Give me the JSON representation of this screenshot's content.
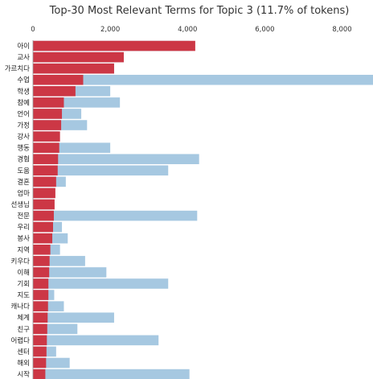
{
  "chart_data": {
    "type": "bar",
    "orientation": "horizontal",
    "title": "Top-30 Most Relevant Terms for Topic 3 (11.7% of tokens)",
    "xlabel": "",
    "ylabel": "",
    "xlim": [
      0,
      8800
    ],
    "x_ticks": [
      0,
      2000,
      4000,
      6000,
      8000
    ],
    "x_tick_labels": [
      "0",
      "2,000",
      "4,000",
      "6,000",
      "8,000"
    ],
    "x_axis_position": "top",
    "grid": false,
    "categories": [
      "아이",
      "교사",
      "가르치다",
      "수업",
      "학생",
      "참예",
      "언어",
      "가정",
      "강사",
      "행동",
      "경험",
      "도움",
      "결혼",
      "엄마",
      "선생님",
      "전문",
      "우리",
      "봉사",
      "지역",
      "키우다",
      "이해",
      "기회",
      "지도",
      "캐나다",
      "체계",
      "친구",
      "어렵다",
      "센터",
      "해외",
      "시작"
    ],
    "series": [
      {
        "role": "overall",
        "values": [
          4050,
          2350,
          2100,
          8800,
          2000,
          2250,
          1250,
          1400,
          650,
          2000,
          4300,
          3500,
          850,
          550,
          500,
          4250,
          750,
          900,
          700,
          1350,
          1900,
          3500,
          550,
          800,
          2100,
          1150,
          3250,
          600,
          950,
          4050
        ],
        "color": "#a6c8e1"
      },
      {
        "role": "topic",
        "values": [
          4200,
          2350,
          2100,
          1300,
          1100,
          800,
          750,
          730,
          700,
          680,
          650,
          640,
          600,
          580,
          560,
          540,
          520,
          500,
          450,
          430,
          420,
          400,
          400,
          390,
          380,
          370,
          360,
          350,
          340,
          320
        ],
        "color": "#cc3745"
      }
    ]
  }
}
